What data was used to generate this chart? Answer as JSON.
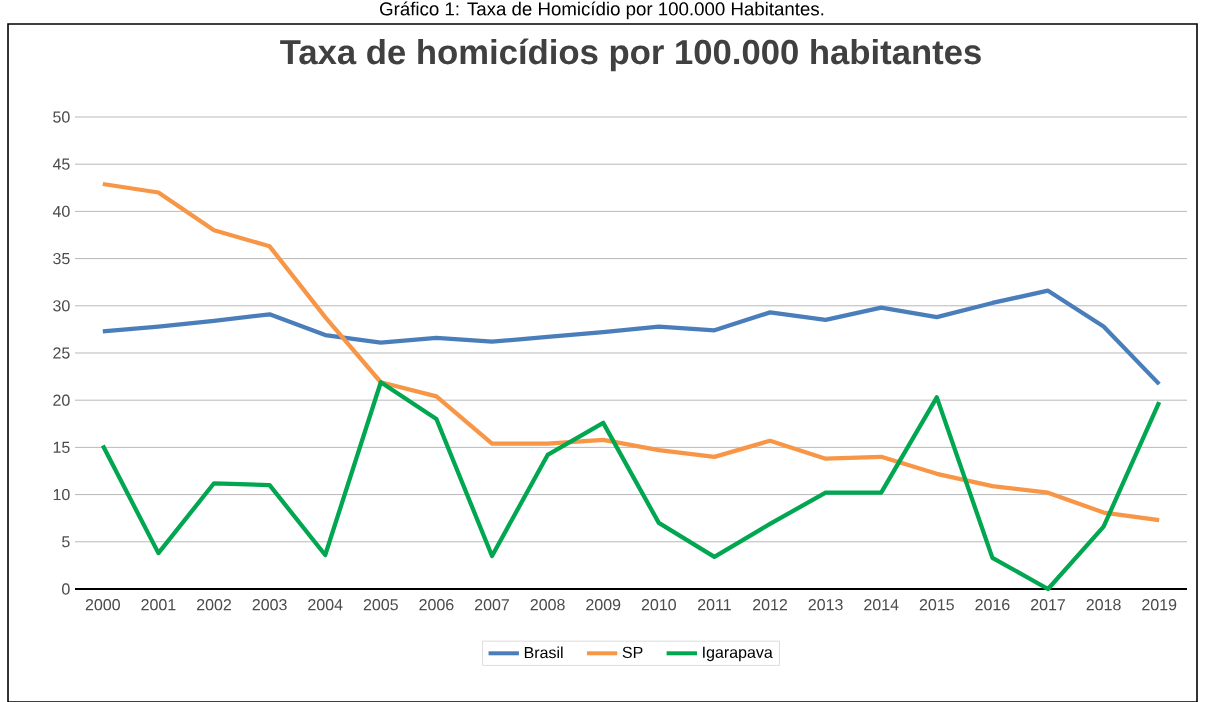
{
  "chart_data": {
    "type": "line",
    "title": "Taxa de homicídios por 100.000 habitantes",
    "annotations": [
      "Gráfico 1: Taxa de Homicídio por 100.000 Habitantes."
    ],
    "categories": [
      "2000",
      "2001",
      "2002",
      "2003",
      "2004",
      "2005",
      "2006",
      "2007",
      "2008",
      "2009",
      "2010",
      "2011",
      "2012",
      "2013",
      "2014",
      "2015",
      "2016",
      "2017",
      "2018",
      "2019"
    ],
    "series": [
      {
        "name": "Brasil",
        "color": "#4a7ebb",
        "values": [
          27.3,
          27.8,
          28.4,
          29.1,
          26.9,
          26.1,
          26.6,
          26.2,
          26.7,
          27.2,
          27.8,
          27.4,
          29.3,
          28.5,
          29.8,
          28.8,
          30.3,
          31.6,
          27.8,
          21.7
        ]
      },
      {
        "name": "SP",
        "color": "#f79646",
        "values": [
          42.9,
          42.0,
          38.0,
          36.3,
          28.8,
          21.9,
          20.4,
          15.4,
          15.4,
          15.8,
          14.7,
          14.0,
          15.7,
          13.8,
          14.0,
          12.2,
          10.9,
          10.2,
          8.1,
          7.3
        ]
      },
      {
        "name": "Igarapava",
        "color": "#00a650",
        "values": [
          15.2,
          3.8,
          11.2,
          11.0,
          3.6,
          21.9,
          18.0,
          3.5,
          14.2,
          17.6,
          7.0,
          3.4,
          6.9,
          10.2,
          10.2,
          20.3,
          3.3,
          0,
          6.6,
          19.8
        ]
      }
    ],
    "ylim": [
      0,
      50
    ],
    "yticks": [
      0,
      5,
      10,
      15,
      20,
      25,
      30,
      35,
      40,
      45,
      50
    ],
    "grid": "y",
    "legend": "bottom",
    "marker": "none",
    "line_style": "solid"
  }
}
